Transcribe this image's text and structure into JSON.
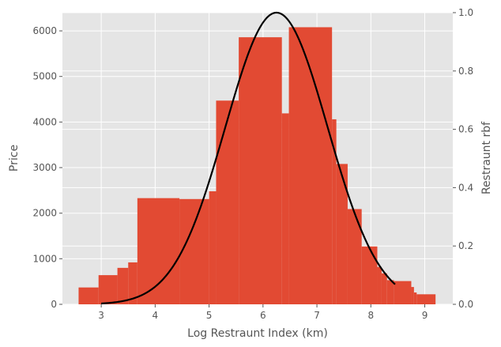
{
  "chart_data": {
    "type": "bar",
    "xlabel": "Log Restraunt Index (km)",
    "ylabel": "Price",
    "y2label": "Restraunt rbf",
    "xlim": [
      2.28,
      9.52
    ],
    "ylim": [
      0,
      6400
    ],
    "y2lim": [
      0,
      1.0
    ],
    "xticks": [
      3,
      4,
      5,
      6,
      7,
      8,
      9
    ],
    "yticks": [
      0,
      1000,
      2000,
      3000,
      4000,
      5000,
      6000
    ],
    "y2ticks": [
      0.0,
      0.2,
      0.4,
      0.6,
      0.8,
      1.0
    ],
    "grid": true,
    "colors": {
      "bars": "#E24A33",
      "curve": "#000000",
      "panel": "#E5E5E5",
      "grid": "#FFFFFF"
    },
    "bars": [
      {
        "x0": 2.58,
        "x1": 2.95,
        "value": 370
      },
      {
        "x0": 2.95,
        "x1": 3.3,
        "value": 640
      },
      {
        "x0": 3.3,
        "x1": 3.5,
        "value": 800
      },
      {
        "x0": 3.5,
        "x1": 3.67,
        "value": 920
      },
      {
        "x0": 3.67,
        "x1": 4.45,
        "value": 2330
      },
      {
        "x0": 4.45,
        "x1": 5.0,
        "value": 2310
      },
      {
        "x0": 5.0,
        "x1": 5.13,
        "value": 2480
      },
      {
        "x0": 5.13,
        "x1": 5.55,
        "value": 4470
      },
      {
        "x0": 5.55,
        "x1": 6.35,
        "value": 5860
      },
      {
        "x0": 6.35,
        "x1": 6.48,
        "value": 4190
      },
      {
        "x0": 6.48,
        "x1": 7.28,
        "value": 6080
      },
      {
        "x0": 7.28,
        "x1": 7.36,
        "value": 4060
      },
      {
        "x0": 7.36,
        "x1": 7.57,
        "value": 3080
      },
      {
        "x0": 7.57,
        "x1": 7.83,
        "value": 2090
      },
      {
        "x0": 7.83,
        "x1": 8.12,
        "value": 1270
      },
      {
        "x0": 8.12,
        "x1": 8.2,
        "value": 820
      },
      {
        "x0": 8.2,
        "x1": 8.3,
        "value": 680
      },
      {
        "x0": 8.3,
        "x1": 8.43,
        "value": 530
      },
      {
        "x0": 8.43,
        "x1": 8.75,
        "value": 510
      },
      {
        "x0": 8.75,
        "x1": 8.8,
        "value": 380
      },
      {
        "x0": 8.8,
        "x1": 8.85,
        "value": 260
      },
      {
        "x0": 8.85,
        "x1": 9.2,
        "value": 220
      }
    ],
    "curve": {
      "type": "line",
      "axis": "right",
      "center": 6.25,
      "sigma": 0.95,
      "x_range": [
        3.0,
        8.45
      ]
    }
  }
}
